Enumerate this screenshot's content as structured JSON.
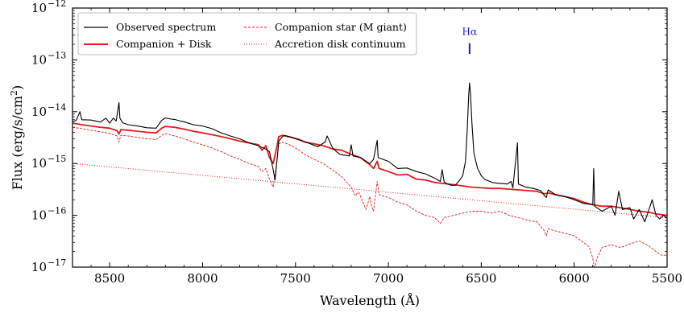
{
  "chart_data": {
    "type": "line",
    "xlabel": "Wavelength (Å)",
    "ylabel": "Flux (erg/s/cm",
    "ylabel_sup": "2",
    "ylabel_close": ")",
    "xlim": [
      8700,
      5500
    ],
    "ylim": [
      1e-17,
      1e-12
    ],
    "yscale": "log",
    "x_ticks": [
      8500,
      8000,
      7500,
      7000,
      6500,
      6000,
      5500
    ],
    "x_tick_labels": [
      "8500",
      "8000",
      "7500",
      "7000",
      "6500",
      "6000",
      "5500"
    ],
    "y_ticks": [
      {
        "value": 1e-17,
        "base": "10",
        "exp": "−17"
      },
      {
        "value": 1e-16,
        "base": "10",
        "exp": "−16"
      },
      {
        "value": 1e-15,
        "base": "10",
        "exp": "−15"
      },
      {
        "value": 1e-14,
        "base": "10",
        "exp": "−14"
      },
      {
        "value": 1e-13,
        "base": "10",
        "exp": "−13"
      },
      {
        "value": 1e-12,
        "base": "10",
        "exp": "−12"
      }
    ],
    "legend_position": "top-left",
    "annotation": {
      "text": "Hα",
      "x": 6563,
      "y_low": 1.3e-13,
      "y_high": 2.1e-13,
      "color": "#1a1ad6"
    },
    "series": [
      {
        "name": "Observed spectrum",
        "color": "#000000",
        "style": "solid",
        "points": [
          [
            8700,
            6.4e-15
          ],
          [
            8680,
            6.8e-15
          ],
          [
            8660,
            1e-14
          ],
          [
            8650,
            7e-15
          ],
          [
            8600,
            6.9e-15
          ],
          [
            8550,
            6.3e-15
          ],
          [
            8520,
            7.5e-15
          ],
          [
            8500,
            6e-15
          ],
          [
            8480,
            7.5e-15
          ],
          [
            8465,
            6.6e-15
          ],
          [
            8450,
            1.5e-14
          ],
          [
            8445,
            7.5e-15
          ],
          [
            8430,
            6.1e-15
          ],
          [
            8400,
            5.6e-15
          ],
          [
            8350,
            5.3e-15
          ],
          [
            8300,
            4.9e-15
          ],
          [
            8250,
            4.8e-15
          ],
          [
            8220,
            6.8e-15
          ],
          [
            8200,
            7.6e-15
          ],
          [
            8170,
            7.2e-15
          ],
          [
            8150,
            7.1e-15
          ],
          [
            8120,
            6.6e-15
          ],
          [
            8100,
            6.4e-15
          ],
          [
            8050,
            5.6e-15
          ],
          [
            8000,
            5.3e-15
          ],
          [
            7950,
            4.7e-15
          ],
          [
            7900,
            3.9e-15
          ],
          [
            7850,
            3.4e-15
          ],
          [
            7800,
            3e-15
          ],
          [
            7750,
            2.5e-15
          ],
          [
            7700,
            2.2e-15
          ],
          [
            7660,
            1.9e-15
          ],
          [
            7640,
            1.7e-15
          ],
          [
            7620,
            7.5e-16
          ],
          [
            7610,
            4.8e-16
          ],
          [
            7600,
            1.1e-15
          ],
          [
            7590,
            2.7e-15
          ],
          [
            7570,
            3.3e-15
          ],
          [
            7560,
            3.5e-15
          ],
          [
            7520,
            3.2e-15
          ],
          [
            7500,
            3e-15
          ],
          [
            7460,
            2.7e-15
          ],
          [
            7420,
            2.4e-15
          ],
          [
            7380,
            2.1e-15
          ],
          [
            7340,
            2.6e-15
          ],
          [
            7330,
            3.4e-15
          ],
          [
            7300,
            2e-15
          ],
          [
            7280,
            1.7e-15
          ],
          [
            7260,
            1.5e-15
          ],
          [
            7210,
            1.4e-15
          ],
          [
            7200,
            2.3e-15
          ],
          [
            7190,
            1.4e-15
          ],
          [
            7150,
            1.3e-15
          ],
          [
            7120,
            1.1e-15
          ],
          [
            7100,
            1e-15
          ],
          [
            7080,
            1.2e-15
          ],
          [
            7060,
            2.8e-15
          ],
          [
            7055,
            1.3e-15
          ],
          [
            7000,
            1.1e-15
          ],
          [
            6950,
            8e-16
          ],
          [
            6900,
            8.2e-16
          ],
          [
            6850,
            7e-16
          ],
          [
            6800,
            6.3e-16
          ],
          [
            6750,
            5.2e-16
          ],
          [
            6720,
            4.5e-16
          ],
          [
            6710,
            7.6e-16
          ],
          [
            6700,
            4.4e-16
          ],
          [
            6680,
            4e-16
          ],
          [
            6660,
            3.8e-16
          ],
          [
            6640,
            3.8e-16
          ],
          [
            6620,
            4.6e-16
          ],
          [
            6600,
            5.8e-16
          ],
          [
            6585,
            1.1e-15
          ],
          [
            6575,
            5e-15
          ],
          [
            6568,
            2e-14
          ],
          [
            6563,
            3.6e-14
          ],
          [
            6558,
            2.2e-14
          ],
          [
            6550,
            6e-15
          ],
          [
            6540,
            1.6e-15
          ],
          [
            6520,
            8e-16
          ],
          [
            6500,
            5.8e-16
          ],
          [
            6480,
            4.9e-16
          ],
          [
            6460,
            4.6e-16
          ],
          [
            6440,
            4.3e-16
          ],
          [
            6400,
            4.1e-16
          ],
          [
            6380,
            4.1e-16
          ],
          [
            6360,
            4e-16
          ],
          [
            6340,
            4.5e-16
          ],
          [
            6330,
            3.4e-16
          ],
          [
            6305,
            2.5e-15
          ],
          [
            6300,
            4e-16
          ],
          [
            6260,
            3.5e-16
          ],
          [
            6220,
            3.3e-16
          ],
          [
            6180,
            3e-16
          ],
          [
            6160,
            2.4e-16
          ],
          [
            6150,
            2.2e-16
          ],
          [
            6140,
            3.1e-16
          ],
          [
            6100,
            2.5e-16
          ],
          [
            6050,
            2.3e-16
          ],
          [
            6000,
            2e-16
          ],
          [
            5950,
            1.7e-16
          ],
          [
            5900,
            1.6e-16
          ],
          [
            5895,
            8e-16
          ],
          [
            5890,
            1.5e-16
          ],
          [
            5850,
            1.2e-16
          ],
          [
            5800,
            1.5e-16
          ],
          [
            5780,
            1e-16
          ],
          [
            5760,
            2.9e-16
          ],
          [
            5740,
            1.3e-16
          ],
          [
            5700,
            1.4e-16
          ],
          [
            5680,
            8.5e-17
          ],
          [
            5650,
            1.3e-16
          ],
          [
            5620,
            7.5e-17
          ],
          [
            5600,
            1.2e-16
          ],
          [
            5580,
            2e-16
          ],
          [
            5560,
            1e-16
          ],
          [
            5540,
            8.5e-17
          ],
          [
            5520,
            1e-16
          ],
          [
            5500,
            8.8e-17
          ]
        ]
      },
      {
        "name": "Companion + Disk",
        "color": "#e31a1c",
        "style": "solid",
        "points": [
          [
            8700,
            6e-15
          ],
          [
            8650,
            5.6e-15
          ],
          [
            8600,
            5.3e-15
          ],
          [
            8550,
            5e-15
          ],
          [
            8500,
            4.8e-15
          ],
          [
            8460,
            4.3e-15
          ],
          [
            8450,
            3.7e-15
          ],
          [
            8440,
            4.5e-15
          ],
          [
            8400,
            4.4e-15
          ],
          [
            8350,
            4.2e-15
          ],
          [
            8300,
            4e-15
          ],
          [
            8250,
            3.9e-15
          ],
          [
            8220,
            4.8e-15
          ],
          [
            8200,
            5.2e-15
          ],
          [
            8150,
            5e-15
          ],
          [
            8100,
            4.6e-15
          ],
          [
            8050,
            4.2e-15
          ],
          [
            8000,
            3.9e-15
          ],
          [
            7950,
            3.6e-15
          ],
          [
            7900,
            3.3e-15
          ],
          [
            7850,
            3e-15
          ],
          [
            7800,
            2.7e-15
          ],
          [
            7750,
            2.5e-15
          ],
          [
            7700,
            2.3e-15
          ],
          [
            7680,
            1.8e-15
          ],
          [
            7660,
            2.2e-15
          ],
          [
            7640,
            1.3e-15
          ],
          [
            7620,
            1e-15
          ],
          [
            7600,
            2.1e-15
          ],
          [
            7590,
            3.3e-15
          ],
          [
            7570,
            3.5e-15
          ],
          [
            7520,
            3.2e-15
          ],
          [
            7480,
            2.9e-15
          ],
          [
            7450,
            2.6e-15
          ],
          [
            7400,
            2.4e-15
          ],
          [
            7350,
            2.2e-15
          ],
          [
            7300,
            1.9e-15
          ],
          [
            7250,
            1.8e-15
          ],
          [
            7200,
            1.5e-15
          ],
          [
            7150,
            1.3e-15
          ],
          [
            7100,
            9.5e-16
          ],
          [
            7080,
            8e-16
          ],
          [
            7060,
            1.1e-15
          ],
          [
            7050,
            8e-16
          ],
          [
            7000,
            7e-16
          ],
          [
            6950,
            6e-16
          ],
          [
            6900,
            6.2e-16
          ],
          [
            6850,
            5e-16
          ],
          [
            6800,
            4.8e-16
          ],
          [
            6750,
            4.3e-16
          ],
          [
            6700,
            4.1e-16
          ],
          [
            6650,
            3.9e-16
          ],
          [
            6600,
            3.7e-16
          ],
          [
            6550,
            3.5e-16
          ],
          [
            6500,
            3.4e-16
          ],
          [
            6450,
            3.3e-16
          ],
          [
            6400,
            3.3e-16
          ],
          [
            6350,
            3.2e-16
          ],
          [
            6300,
            3.1e-16
          ],
          [
            6250,
            3e-16
          ],
          [
            6200,
            2.9e-16
          ],
          [
            6160,
            2.6e-16
          ],
          [
            6140,
            2.7e-16
          ],
          [
            6100,
            2.5e-16
          ],
          [
            6050,
            2.3e-16
          ],
          [
            6000,
            2.1e-16
          ],
          [
            5950,
            1.8e-16
          ],
          [
            5900,
            1.6e-16
          ],
          [
            5850,
            1.5e-16
          ],
          [
            5800,
            1.5e-16
          ],
          [
            5750,
            1.4e-16
          ],
          [
            5700,
            1.3e-16
          ],
          [
            5650,
            1.2e-16
          ],
          [
            5600,
            1.15e-16
          ],
          [
            5550,
            1.05e-16
          ],
          [
            5500,
            1e-16
          ]
        ]
      },
      {
        "name": "Companion star (M giant)",
        "color": "#e31a1c",
        "style": "dashed",
        "points": [
          [
            8700,
            5e-15
          ],
          [
            8650,
            4.7e-15
          ],
          [
            8600,
            4.4e-15
          ],
          [
            8550,
            4.1e-15
          ],
          [
            8500,
            3.8e-15
          ],
          [
            8460,
            3.4e-15
          ],
          [
            8450,
            2.6e-15
          ],
          [
            8440,
            3.5e-15
          ],
          [
            8400,
            3.4e-15
          ],
          [
            8350,
            3.2e-15
          ],
          [
            8300,
            3e-15
          ],
          [
            8250,
            2.9e-15
          ],
          [
            8220,
            3.5e-15
          ],
          [
            8200,
            3.8e-15
          ],
          [
            8150,
            3.4e-15
          ],
          [
            8100,
            3e-15
          ],
          [
            8050,
            2.6e-15
          ],
          [
            8000,
            2.3e-15
          ],
          [
            7950,
            2e-15
          ],
          [
            7900,
            1.7e-15
          ],
          [
            7850,
            1.4e-15
          ],
          [
            7800,
            1.2e-15
          ],
          [
            7750,
            1e-15
          ],
          [
            7700,
            8.8e-16
          ],
          [
            7680,
            7e-16
          ],
          [
            7660,
            8e-16
          ],
          [
            7640,
            5e-16
          ],
          [
            7620,
            3.5e-16
          ],
          [
            7600,
            1.1e-15
          ],
          [
            7590,
            2.4e-15
          ],
          [
            7570,
            2.6e-15
          ],
          [
            7520,
            2.2e-15
          ],
          [
            7480,
            1.8e-15
          ],
          [
            7450,
            1.5e-15
          ],
          [
            7400,
            1.2e-15
          ],
          [
            7350,
            1e-15
          ],
          [
            7300,
            7.5e-16
          ],
          [
            7250,
            5.5e-16
          ],
          [
            7200,
            3.5e-16
          ],
          [
            7180,
            2.4e-16
          ],
          [
            7160,
            2.8e-16
          ],
          [
            7140,
            1.9e-16
          ],
          [
            7120,
            1.3e-16
          ],
          [
            7100,
            2.3e-16
          ],
          [
            7090,
            1.5e-16
          ],
          [
            7080,
            1.2e-16
          ],
          [
            7070,
            2.4e-16
          ],
          [
            7060,
            4.5e-16
          ],
          [
            7050,
            2.5e-16
          ],
          [
            7000,
            2.2e-16
          ],
          [
            6950,
            1.8e-16
          ],
          [
            6900,
            1.6e-16
          ],
          [
            6850,
            1.2e-16
          ],
          [
            6800,
            1e-16
          ],
          [
            6750,
            9e-17
          ],
          [
            6720,
            7e-17
          ],
          [
            6700,
            9e-17
          ],
          [
            6650,
            1e-16
          ],
          [
            6600,
            1.1e-16
          ],
          [
            6550,
            1.2e-16
          ],
          [
            6500,
            1.2e-16
          ],
          [
            6450,
            1.1e-16
          ],
          [
            6400,
            1.2e-16
          ],
          [
            6350,
            1e-16
          ],
          [
            6300,
            9e-17
          ],
          [
            6250,
            8e-17
          ],
          [
            6200,
            7.5e-17
          ],
          [
            6160,
            5e-17
          ],
          [
            6150,
            4e-17
          ],
          [
            6140,
            5.5e-17
          ],
          [
            6100,
            5e-17
          ],
          [
            6050,
            4.5e-17
          ],
          [
            6000,
            4e-17
          ],
          [
            5950,
            3e-17
          ],
          [
            5920,
            2.5e-17
          ],
          [
            5900,
            1.5e-17
          ],
          [
            5890,
            8.5e-18
          ],
          [
            5880,
            1.4e-17
          ],
          [
            5850,
            2.4e-17
          ],
          [
            5800,
            2.7e-17
          ],
          [
            5750,
            2.4e-17
          ],
          [
            5700,
            2.8e-17
          ],
          [
            5650,
            3.2e-17
          ],
          [
            5600,
            2.6e-17
          ],
          [
            5560,
            2e-17
          ],
          [
            5530,
            1.7e-17
          ],
          [
            5500,
            1.7e-17
          ]
        ]
      },
      {
        "name": "Accretion disk continuum",
        "color": "#e31a1c",
        "style": "dotted",
        "points": [
          [
            8700,
            1e-15
          ],
          [
            5500,
            9e-17
          ]
        ]
      }
    ]
  }
}
